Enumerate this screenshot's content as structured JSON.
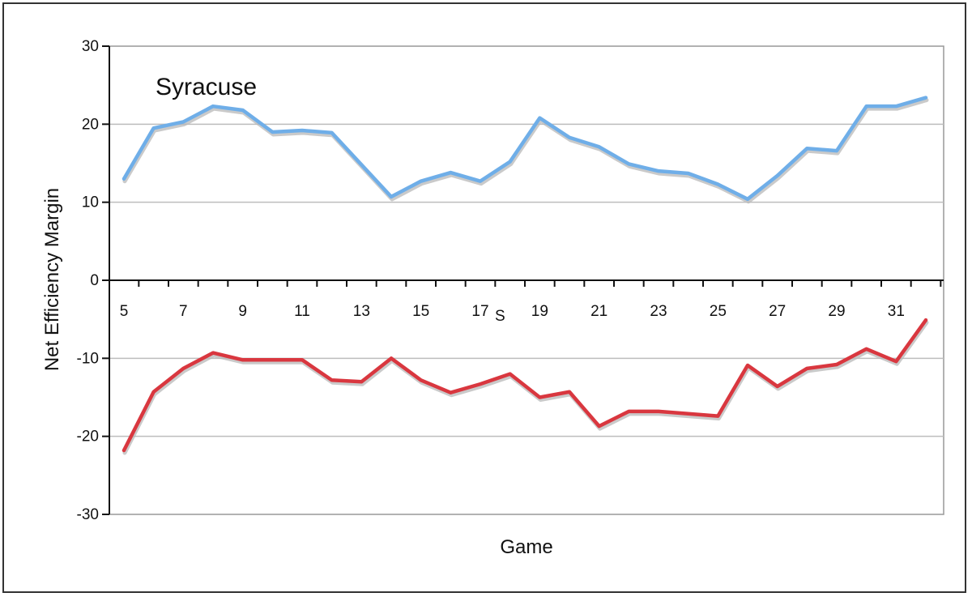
{
  "chart_data": {
    "type": "line",
    "title": "",
    "xlabel": "Game",
    "ylabel": "Net Efficiency Margin",
    "ylim": [
      -30,
      30
    ],
    "yticks": [
      30,
      20,
      10,
      0,
      -10,
      -20,
      -30
    ],
    "xlim": [
      5,
      32
    ],
    "x_tick_labels": [
      5,
      7,
      9,
      11,
      13,
      15,
      17,
      19,
      21,
      23,
      25,
      27,
      29,
      31
    ],
    "grid": true,
    "annotations": [
      {
        "text": "Syracuse"
      },
      {
        "text": "S"
      }
    ],
    "x": [
      5,
      6,
      7,
      8,
      9,
      10,
      11,
      12,
      13,
      14,
      15,
      16,
      17,
      18,
      19,
      20,
      21,
      22,
      23,
      24,
      25,
      26,
      27,
      28,
      29,
      30,
      31,
      32
    ],
    "series": [
      {
        "color": "#6faee8",
        "values": [
          13,
          19.5,
          20.3,
          22.3,
          21.8,
          19,
          19.2,
          18.9,
          14.8,
          10.7,
          12.7,
          13.8,
          12.7,
          15.2,
          20.8,
          18.3,
          17.1,
          14.9,
          14,
          13.7,
          12.3,
          10.4,
          13.4,
          16.9,
          16.6,
          22.3,
          22.3,
          23.4
        ]
      },
      {
        "color": "#d9373f",
        "values": [
          -21.8,
          -14.3,
          -11.3,
          -9.3,
          -10.2,
          -10.2,
          -10.2,
          -12.8,
          -13,
          -10,
          -12.8,
          -14.4,
          -13.3,
          -12,
          -15,
          -14.3,
          -18.7,
          -16.8,
          -16.8,
          -17.1,
          -17.4,
          -10.9,
          -13.6,
          -11.3,
          -10.8,
          -8.8,
          -10.4,
          -5.1
        ]
      }
    ]
  }
}
